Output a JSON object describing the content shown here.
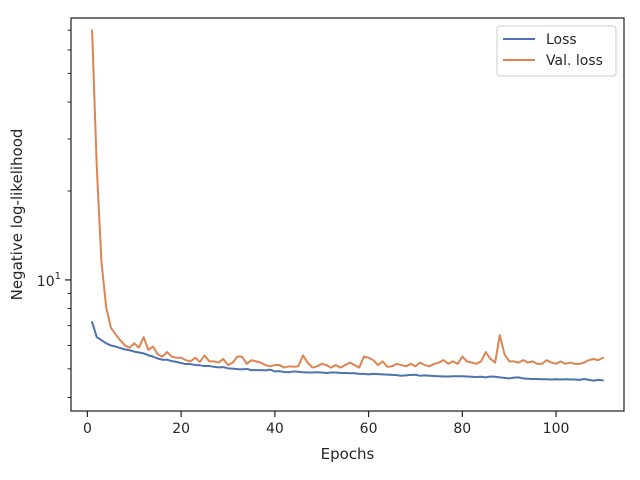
{
  "chart_data": {
    "type": "line",
    "title": "",
    "xlabel": "Epochs",
    "ylabel": "Negative log-likelihood",
    "y_scale": "log",
    "xlim": [
      -3.5,
      114.5
    ],
    "ylim": [
      3.6,
      77
    ],
    "x_ticks": [
      0,
      20,
      40,
      60,
      80,
      100
    ],
    "x_tick_labels": [
      "0",
      "20",
      "40",
      "60",
      "80",
      "100"
    ],
    "y_major_ticks": [
      10
    ],
    "y_major_tick_labels": [
      {
        "base": "10",
        "exp": "1"
      }
    ],
    "y_minor_ticks": [
      4,
      5,
      6,
      7,
      8,
      9,
      20,
      30,
      40,
      50,
      60,
      70
    ],
    "grid": false,
    "legend_position": "top-right",
    "series": [
      {
        "name": "Loss",
        "color": "#4c72b0",
        "x": [
          1,
          2,
          3,
          4,
          5,
          6,
          7,
          8,
          9,
          10,
          11,
          12,
          13,
          14,
          15,
          16,
          17,
          18,
          19,
          20,
          21,
          22,
          23,
          24,
          25,
          26,
          27,
          28,
          29,
          30,
          31,
          32,
          33,
          34,
          35,
          36,
          37,
          38,
          39,
          40,
          41,
          42,
          43,
          44,
          45,
          46,
          47,
          48,
          49,
          50,
          51,
          52,
          53,
          54,
          55,
          56,
          57,
          58,
          59,
          60,
          61,
          62,
          63,
          64,
          65,
          66,
          67,
          68,
          69,
          70,
          71,
          72,
          73,
          74,
          75,
          76,
          77,
          78,
          79,
          80,
          81,
          82,
          83,
          84,
          85,
          86,
          87,
          88,
          89,
          90,
          91,
          92,
          93,
          94,
          95,
          96,
          97,
          98,
          99,
          100,
          101,
          102,
          103,
          104,
          105,
          106,
          107,
          108,
          109,
          110
        ],
        "values": [
          7.2,
          6.4,
          6.25,
          6.1,
          6.0,
          5.95,
          5.88,
          5.82,
          5.78,
          5.72,
          5.68,
          5.64,
          5.56,
          5.5,
          5.42,
          5.37,
          5.37,
          5.31,
          5.28,
          5.23,
          5.19,
          5.19,
          5.15,
          5.14,
          5.11,
          5.11,
          5.08,
          5.06,
          5.07,
          5.02,
          5.01,
          4.99,
          4.98,
          5.0,
          4.95,
          4.95,
          4.95,
          4.94,
          4.97,
          4.9,
          4.91,
          4.88,
          4.87,
          4.9,
          4.89,
          4.87,
          4.86,
          4.86,
          4.87,
          4.86,
          4.84,
          4.86,
          4.86,
          4.84,
          4.84,
          4.83,
          4.83,
          4.81,
          4.81,
          4.79,
          4.81,
          4.8,
          4.79,
          4.78,
          4.77,
          4.76,
          4.74,
          4.75,
          4.77,
          4.77,
          4.74,
          4.75,
          4.74,
          4.73,
          4.72,
          4.71,
          4.71,
          4.72,
          4.72,
          4.72,
          4.71,
          4.7,
          4.69,
          4.7,
          4.68,
          4.71,
          4.7,
          4.68,
          4.66,
          4.64,
          4.67,
          4.68,
          4.64,
          4.63,
          4.62,
          4.62,
          4.61,
          4.61,
          4.6,
          4.61,
          4.6,
          4.61,
          4.6,
          4.6,
          4.59,
          4.62,
          4.59,
          4.56,
          4.59,
          4.57
        ]
      },
      {
        "name": "Val. loss",
        "color": "#dd8452",
        "x": [
          1,
          2,
          3,
          4,
          5,
          6,
          7,
          8,
          9,
          10,
          11,
          12,
          13,
          14,
          15,
          16,
          17,
          18,
          19,
          20,
          21,
          22,
          23,
          24,
          25,
          26,
          27,
          28,
          29,
          30,
          31,
          32,
          33,
          34,
          35,
          36,
          37,
          38,
          39,
          40,
          41,
          42,
          43,
          44,
          45,
          46,
          47,
          48,
          49,
          50,
          51,
          52,
          53,
          54,
          55,
          56,
          57,
          58,
          59,
          60,
          61,
          62,
          63,
          64,
          65,
          66,
          67,
          68,
          69,
          70,
          71,
          72,
          73,
          74,
          75,
          76,
          77,
          78,
          79,
          80,
          81,
          82,
          83,
          84,
          85,
          86,
          87,
          88,
          89,
          90,
          91,
          92,
          93,
          94,
          95,
          96,
          97,
          98,
          99,
          100,
          101,
          102,
          103,
          104,
          105,
          106,
          107,
          108,
          109,
          110
        ],
        "values": [
          70,
          24,
          11.5,
          8.1,
          6.9,
          6.55,
          6.25,
          6.0,
          5.9,
          6.1,
          5.9,
          6.4,
          5.8,
          5.95,
          5.6,
          5.5,
          5.7,
          5.5,
          5.45,
          5.45,
          5.35,
          5.3,
          5.45,
          5.28,
          5.55,
          5.3,
          5.3,
          5.25,
          5.4,
          5.15,
          5.25,
          5.5,
          5.5,
          5.2,
          5.35,
          5.3,
          5.25,
          5.15,
          5.1,
          5.15,
          5.15,
          5.05,
          5.1,
          5.08,
          5.1,
          5.55,
          5.25,
          5.05,
          5.1,
          5.2,
          5.15,
          5.05,
          5.15,
          5.05,
          5.15,
          5.25,
          5.15,
          5.05,
          5.5,
          5.45,
          5.35,
          5.15,
          5.3,
          5.08,
          5.1,
          5.2,
          5.15,
          5.1,
          5.2,
          5.1,
          5.25,
          5.15,
          5.1,
          5.2,
          5.25,
          5.35,
          5.2,
          5.3,
          5.2,
          5.5,
          5.3,
          5.25,
          5.2,
          5.3,
          5.7,
          5.4,
          5.25,
          6.5,
          5.6,
          5.3,
          5.3,
          5.25,
          5.35,
          5.25,
          5.3,
          5.2,
          5.2,
          5.35,
          5.25,
          5.2,
          5.3,
          5.2,
          5.25,
          5.2,
          5.2,
          5.25,
          5.35,
          5.4,
          5.35,
          5.45
        ]
      }
    ]
  }
}
